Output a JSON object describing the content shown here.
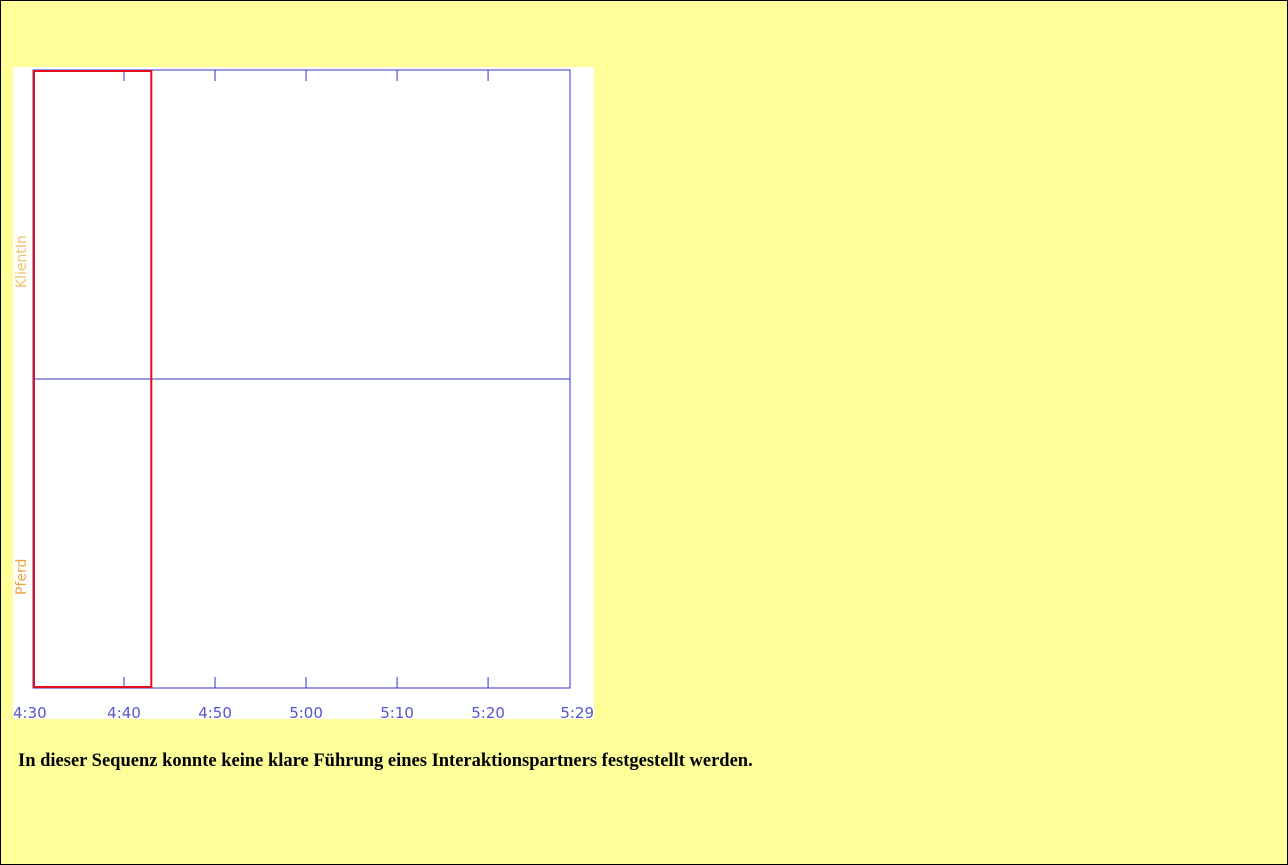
{
  "colors": {
    "page_bg": "#ffff99",
    "plot_bg": "#ffffff",
    "axis": "#3333cc",
    "tick_label": "#5555cc",
    "highlight": "#e0101a",
    "track_label_top": "#f0c060",
    "track_label_bottom": "#f0a040"
  },
  "chart_data": {
    "type": "timeline",
    "x_unit": "mm:ss",
    "xlim": [
      "4:30",
      "5:29"
    ],
    "x_ticks": [
      "4:30",
      "4:40",
      "4:50",
      "5:00",
      "5:10",
      "5:20",
      "5:29"
    ],
    "tracks": [
      {
        "label": "KlientIn"
      },
      {
        "label": "Pferd"
      }
    ],
    "highlight_window": {
      "start": "4:30",
      "end": "4:43"
    },
    "grid": false
  },
  "caption": "In dieser Sequenz konnte keine klare Führung eines Interaktionspartners festgestellt werden."
}
